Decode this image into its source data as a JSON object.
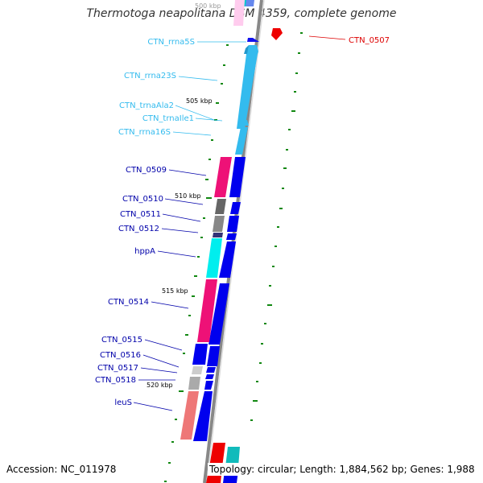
{
  "title": "Thermotoga neapolitana DSM 4359, complete genome",
  "footer": {
    "accession_label": "Accession:",
    "accession": "NC_011978",
    "topology_label": "Topology:",
    "topology": "circular",
    "length_label": "Length:",
    "length": "1,884,562 bp",
    "genes_label": "Genes:",
    "genes": "1,988"
  },
  "ticks": [
    {
      "label": "500 kbp"
    },
    {
      "label": "505 kbp"
    },
    {
      "label": "510 kbp"
    },
    {
      "label": "515 kbp"
    },
    {
      "label": "520 kbp"
    }
  ],
  "gene_labels": [
    {
      "name": "CTN_rrna5S",
      "color": "#33bbee"
    },
    {
      "name": "CTN_rrna23S",
      "color": "#33bbee"
    },
    {
      "name": "CTN_trnaAla2",
      "color": "#33bbee"
    },
    {
      "name": "CTN_trnaIle1",
      "color": "#33bbee"
    },
    {
      "name": "CTN_rrna16S",
      "color": "#33bbee"
    },
    {
      "name": "CTN_0509",
      "color": "#0000aa"
    },
    {
      "name": "CTN_0510",
      "color": "#0000aa"
    },
    {
      "name": "CTN_0511",
      "color": "#0000aa"
    },
    {
      "name": "CTN_0512",
      "color": "#0000aa"
    },
    {
      "name": "hppA",
      "color": "#0000aa"
    },
    {
      "name": "CTN_0514",
      "color": "#0000aa"
    },
    {
      "name": "CTN_0515",
      "color": "#0000aa"
    },
    {
      "name": "CTN_0516",
      "color": "#0000aa"
    },
    {
      "name": "CTN_0517",
      "color": "#0000aa"
    },
    {
      "name": "CTN_0518",
      "color": "#0000aa"
    },
    {
      "name": "leuS",
      "color": "#0000aa"
    },
    {
      "name": "CTN_0507",
      "color": "#dd0000"
    }
  ],
  "colors": {
    "backbone": "#888888",
    "rna": "#33bbee",
    "gene_forward": "#0000ee",
    "gene_reverse": "#ee1177",
    "gc_skew": "#118811"
  }
}
